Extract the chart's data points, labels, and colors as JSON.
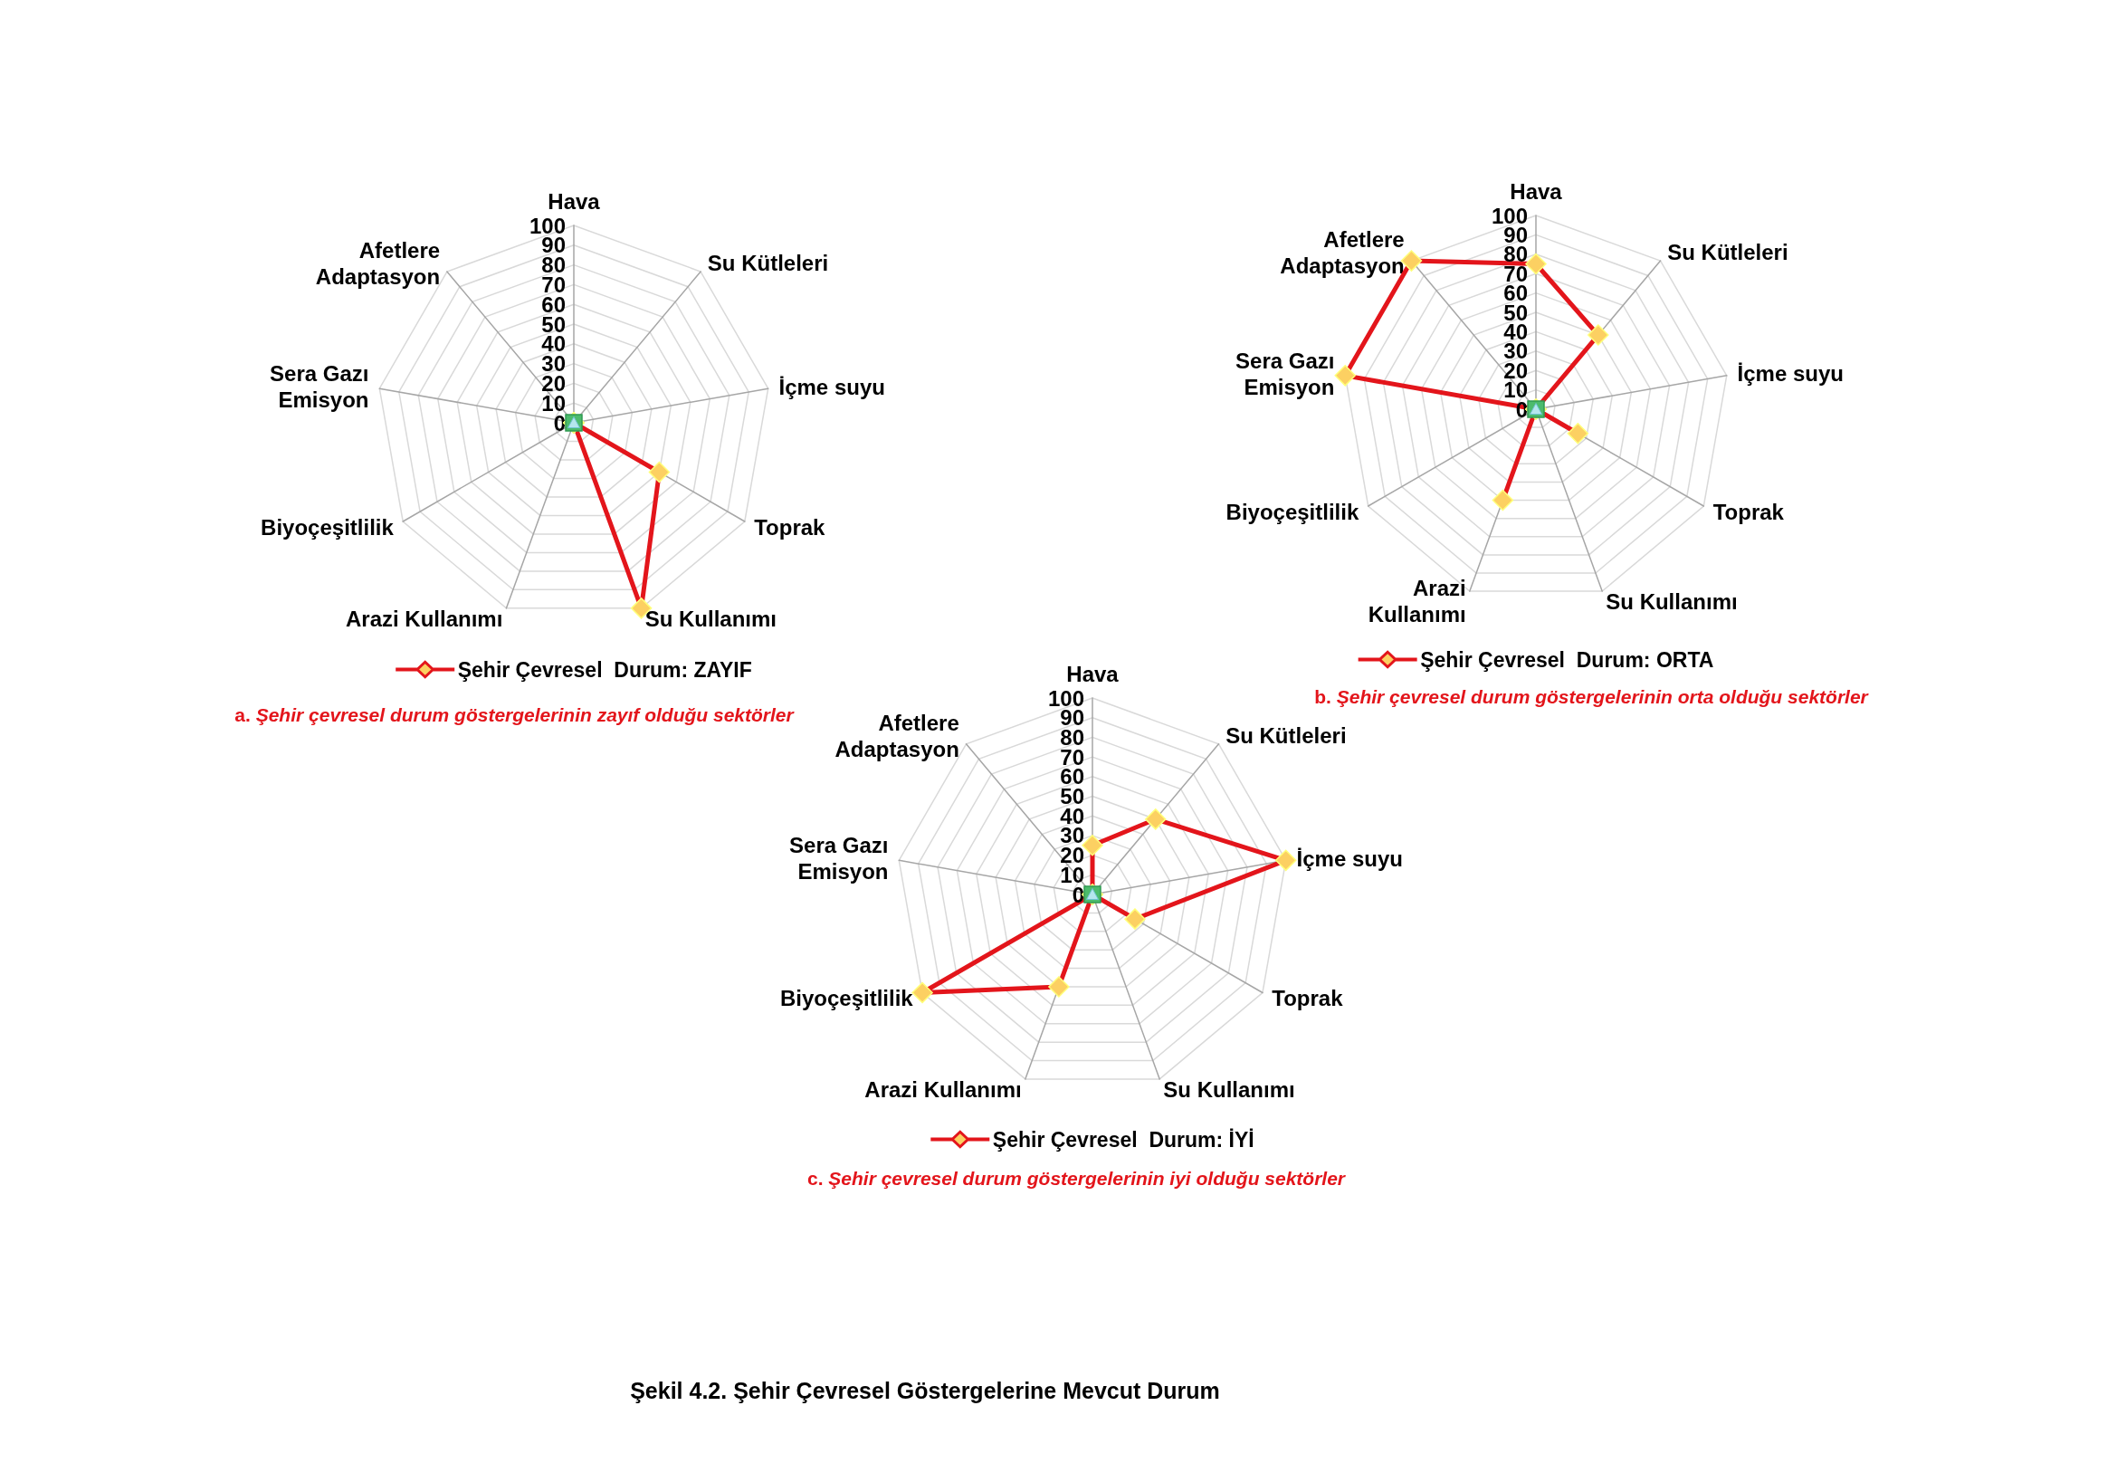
{
  "chart_data": [
    {
      "type": "radar",
      "categories": [
        "Hava",
        "Su Kütleleri",
        "İçme suyu",
        "Toprak",
        "Su Kullanımı",
        "Arazi Kullanımı",
        "Biyoçeşitlilik",
        "Sera Gazı\nEmisyon",
        "Afetlere\nAdaptasyon"
      ],
      "series": [
        {
          "name": "Şehir Çevresel  Durum: ZAYIF",
          "color": "#e3151b",
          "colors": [
            "#fcd062",
            "#fcd062",
            "#fcd062",
            "#fcd062",
            "#fcd062",
            "#fcd062",
            "#fcd062",
            "#fcd062",
            "#fcd062"
          ],
          "marker": "diamond",
          "values": [
            0,
            0,
            0,
            50,
            100,
            0,
            0,
            0,
            0
          ]
        }
      ],
      "ylim": [
        0,
        100
      ],
      "yticks": [
        0,
        10,
        20,
        30,
        40,
        50,
        60,
        70,
        80,
        90,
        100
      ],
      "grid": true,
      "legend": "bottom",
      "annotations": [
        "a. Şehir çevresel durum göstergelerinin zayıf olduğu sektörler"
      ]
    },
    {
      "type": "radar",
      "categories": [
        "Hava",
        "Su Kütleleri",
        "İçme suyu",
        "Toprak",
        "Su Kullanımı",
        "Arazi\nKullanımı",
        "Biyoçeşitlilik",
        "Sera Gazı\nEmisyon",
        "Afetlere\nAdaptasyon"
      ],
      "series": [
        {
          "name": "Şehir Çevresel  Durum: ORTA",
          "color": "#e3151b",
          "colors": [
            "#fcd062",
            "#fcd062",
            "#fcd062",
            "#fcd062",
            "#fcd062",
            "#fcd062",
            "#fcd062",
            "#fcd062",
            "#fcd062"
          ],
          "marker": "diamond",
          "values": [
            75,
            50,
            0,
            25,
            0,
            50,
            0,
            100,
            100
          ]
        }
      ],
      "ylim": [
        0,
        100
      ],
      "yticks": [
        0,
        10,
        20,
        30,
        40,
        50,
        60,
        70,
        80,
        90,
        100
      ],
      "grid": true,
      "legend": "bottom",
      "annotations": [
        "b. Şehir çevresel durum göstergelerinin orta olduğu sektörler"
      ]
    },
    {
      "type": "radar",
      "categories": [
        "Hava",
        "Su Kütleleri",
        "İçme suyu",
        "Toprak",
        "Su Kullanımı",
        "Arazi Kullanımı",
        "Biyoçeşitlilik",
        "Sera Gazı\nEmisyon",
        "Afetlere\nAdaptasyon"
      ],
      "series": [
        {
          "name": "Şehir Çevresel  Durum: İYİ",
          "color": "#e3151b",
          "colors": [
            "#fcd062",
            "#fcd062",
            "#fcd062",
            "#fcd062",
            "#fcd062",
            "#fcd062",
            "#fcd062",
            "#fcd062",
            "#fcd062"
          ],
          "marker": "diamond",
          "values": [
            25,
            50,
            100,
            25,
            0,
            50,
            100,
            0,
            0
          ]
        }
      ],
      "ylim": [
        0,
        100
      ],
      "yticks": [
        0,
        10,
        20,
        30,
        40,
        50,
        60,
        70,
        80,
        90,
        100
      ],
      "grid": true,
      "legend": "bottom",
      "annotations": [
        "c. Şehir çevresel durum göstergelerinin iyi olduğu sektörler",
        "Şekil 4.2. Şehir Çevresel Göstergelerine Mevcut Durum"
      ]
    }
  ]
}
